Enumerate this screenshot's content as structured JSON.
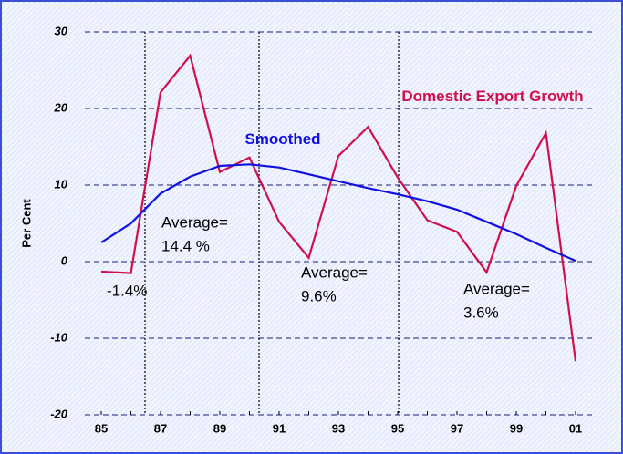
{
  "chart_data": {
    "type": "line",
    "y_label": "Per Cent",
    "categories": [
      "85",
      null,
      "87",
      null,
      "89",
      null,
      "91",
      null,
      "93",
      null,
      "95",
      null,
      "97",
      null,
      "99",
      null,
      "01"
    ],
    "series": [
      {
        "name": "Domestic Export Growth",
        "color": "#d0104c",
        "values": [
          -1.3,
          -1.5,
          22.1,
          26.9,
          11.7,
          13.6,
          5.2,
          0.5,
          13.8,
          17.6,
          11.0,
          5.4,
          3.9,
          -1.4,
          9.9,
          16.8,
          -13.0
        ]
      },
      {
        "name": "Smoothed",
        "color": "#1010e0",
        "values": [
          2.5,
          5.0,
          8.9,
          11.1,
          12.5,
          12.7,
          12.3,
          11.4,
          10.5,
          9.6,
          8.8,
          7.9,
          6.8,
          5.2,
          3.6,
          1.8,
          0.1
        ]
      }
    ],
    "ylim": [
      -20,
      30
    ],
    "yticks": [
      -20,
      -10,
      0,
      10,
      20,
      30
    ],
    "grid": true,
    "annotations": [
      {
        "lines": [
          "-1.4%"
        ]
      },
      {
        "lines": [
          "Average=",
          "14.4 %"
        ]
      },
      {
        "lines": [
          "Average=",
          "9.6%"
        ]
      },
      {
        "lines": [
          "Average=",
          "3.6%"
        ]
      }
    ]
  }
}
